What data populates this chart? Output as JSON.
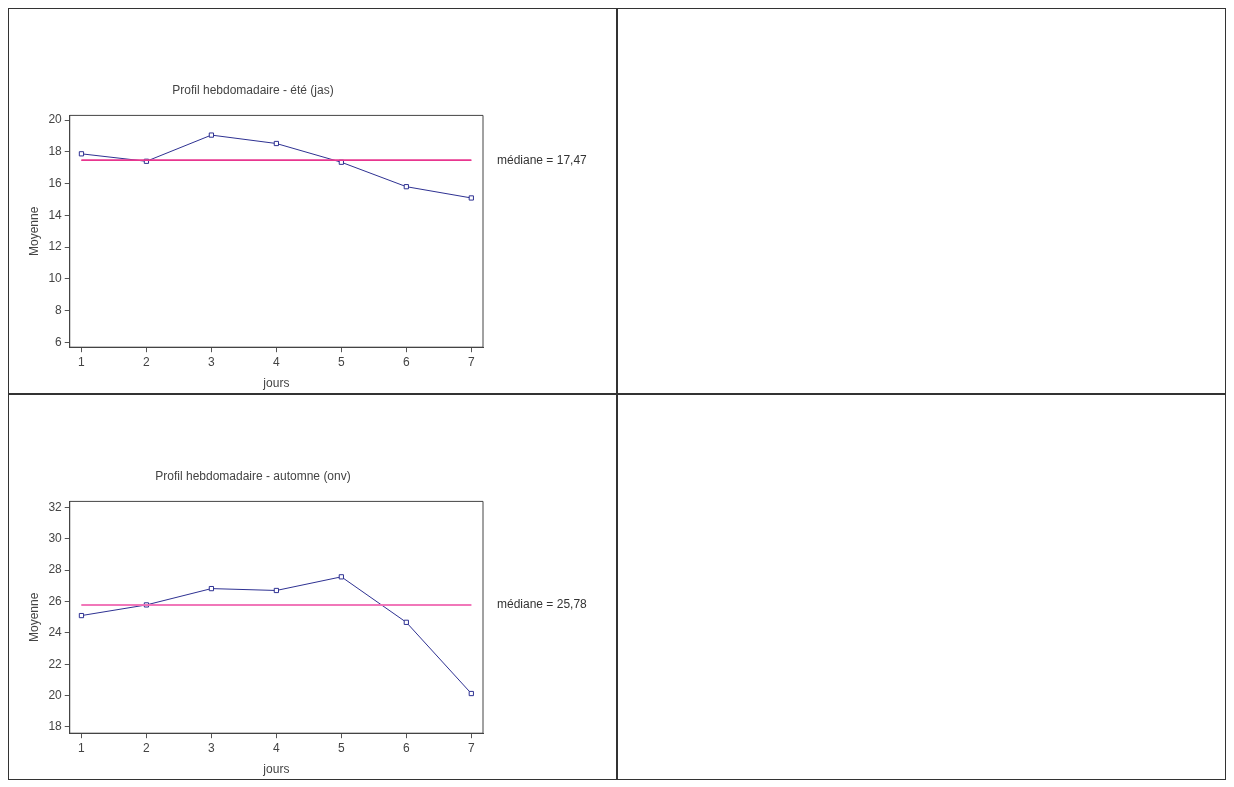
{
  "chart_data": [
    {
      "type": "line",
      "title": "Profil hebdomadaire - été (jas)",
      "xlabel": "jours",
      "ylabel": "Moyenne",
      "x": [
        1,
        2,
        3,
        4,
        5,
        6,
        7
      ],
      "series": [
        {
          "color": "#2e3192",
          "values": [
            17.88,
            17.41,
            19.06,
            18.53,
            17.35,
            15.81,
            15.1
          ]
        }
      ],
      "xlim": [
        0.82,
        7.18
      ],
      "xticks": [
        1,
        2,
        3,
        4,
        5,
        6,
        7
      ],
      "ylim": [
        5.7,
        20.3
      ],
      "yticks": [
        6,
        8,
        10,
        12,
        14,
        16,
        18,
        20
      ],
      "marker": "square",
      "grid": false,
      "legend": false,
      "ref_lines": [
        {
          "axis": "y",
          "value": 17.47,
          "label": "médiane = 17,47",
          "color": "#e8368f"
        }
      ]
    },
    {
      "type": "line",
      "title": "Profil hebdomadaire - automne (onv)",
      "xlabel": "jours",
      "ylabel": "Moyenne",
      "x": [
        1,
        2,
        3,
        4,
        5,
        6,
        7
      ],
      "series": [
        {
          "color": "#2e3192",
          "values": [
            25.1,
            25.78,
            26.82,
            26.7,
            27.57,
            24.67,
            20.13
          ]
        }
      ],
      "xlim": [
        0.82,
        7.18
      ],
      "xticks": [
        1,
        2,
        3,
        4,
        5,
        6,
        7
      ],
      "ylim": [
        17.6,
        32.38
      ],
      "yticks": [
        18,
        20,
        22,
        24,
        26,
        28,
        30,
        32
      ],
      "marker": "square",
      "grid": false,
      "legend": false,
      "ref_lines": [
        {
          "axis": "y",
          "value": 25.78,
          "label": "médiane = 25,78",
          "color": "#f06eb4"
        }
      ]
    }
  ]
}
